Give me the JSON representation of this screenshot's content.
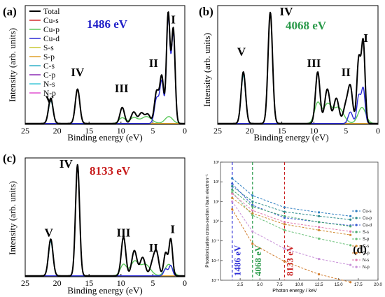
{
  "panels": [
    {
      "panel_label": "(a)",
      "energy_label": "1486 eV",
      "energy_color": "#2020c8",
      "ylabel": "Intensity (arb. units)",
      "xlabel": "Binding energy (eV)",
      "x_ticks": [
        "25",
        "20",
        "15",
        "10",
        "5",
        "0"
      ],
      "peak_labels": [
        {
          "text": "V",
          "x": 21.2,
          "y": 0.18
        },
        {
          "text": "IV",
          "x": 16.8,
          "y": 0.42
        },
        {
          "text": "III",
          "x": 9.9,
          "y": 0.28
        },
        {
          "text": "II",
          "x": 4.9,
          "y": 0.5
        },
        {
          "text": "I",
          "x": 1.8,
          "y": 0.88
        }
      ],
      "legend": [
        {
          "label": "Total",
          "color": "#000000"
        },
        {
          "label": "Cu-s",
          "color": "#d22d2d"
        },
        {
          "label": "Cu-p",
          "color": "#5ac85a"
        },
        {
          "label": "Cu-d",
          "color": "#2a2ad6"
        },
        {
          "label": "S-s",
          "color": "#c8c832"
        },
        {
          "label": "S-p",
          "color": "#e0a02a"
        },
        {
          "label": "C-s",
          "color": "#30b0c8"
        },
        {
          "label": "C-p",
          "color": "#8a2ab4"
        },
        {
          "label": "N-s",
          "color": "#40c8d8"
        },
        {
          "label": "N-p",
          "color": "#e050d0"
        }
      ]
    },
    {
      "panel_label": "(b)",
      "energy_label": "4068 eV",
      "energy_color": "#2a9a4a",
      "ylabel": "Intensity (arb. units)",
      "xlabel": "Binding energy (eV)",
      "x_ticks": [
        "25",
        "20",
        "15",
        "10",
        "5",
        "0"
      ],
      "peak_labels": [
        {
          "text": "V",
          "x": 21.3,
          "y": 0.6
        },
        {
          "text": "IV",
          "x": 14.3,
          "y": 0.95
        },
        {
          "text": "III",
          "x": 10.0,
          "y": 0.5
        },
        {
          "text": "II",
          "x": 5.0,
          "y": 0.42
        },
        {
          "text": "I",
          "x": 1.9,
          "y": 0.72
        }
      ]
    },
    {
      "panel_label": "(c)",
      "energy_label": "8133 eV",
      "energy_color": "#c81e1e",
      "ylabel": "Intensity (arb. units)",
      "xlabel": "Binding energy (eV)",
      "x_ticks": [
        "25",
        "20",
        "15",
        "10",
        "5",
        "0"
      ],
      "peak_labels": [
        {
          "text": "V",
          "x": 21.3,
          "y": 0.35
        },
        {
          "text": "IV",
          "x": 18.6,
          "y": 0.95
        },
        {
          "text": "III",
          "x": 9.6,
          "y": 0.35
        },
        {
          "text": "II",
          "x": 4.9,
          "y": 0.22
        },
        {
          "text": "I",
          "x": 1.9,
          "y": 0.38
        }
      ]
    },
    {
      "panel_label": "(d)",
      "ylabel": "Photoionization cross-section / barn electron⁻¹",
      "xlabel": "Photon energy / keV",
      "x_ticks": [
        "2.5",
        "5.0",
        "7.5",
        "10.0",
        "12.5",
        "15.0",
        "17.5",
        "20.0"
      ],
      "y_ticks": [
        "10⁻³",
        "10⁻²",
        "10⁻¹",
        "10⁰",
        "10¹",
        "10²",
        "10³"
      ],
      "energy_markers": [
        {
          "label": "1486 eV",
          "x": 1.486,
          "color": "#2a2ad6"
        },
        {
          "label": "4068 eV",
          "x": 4.068,
          "color": "#2a9a4a"
        },
        {
          "label": "8133 eV",
          "x": 8.133,
          "color": "#c81e1e"
        }
      ],
      "legend": [
        {
          "label": "Cu-s",
          "color": "#2f7fc1"
        },
        {
          "label": "Cu-p",
          "color": "#2a8a8a"
        },
        {
          "label": "Cu-d",
          "color": "#3a5ad0"
        },
        {
          "label": "S-s",
          "color": "#4aa870"
        },
        {
          "label": "S-p",
          "color": "#68c078"
        },
        {
          "label": "C-s",
          "color": "#d08a30"
        },
        {
          "label": "C-p",
          "color": "#d07a2a"
        },
        {
          "label": "N-s",
          "color": "#e07ab0"
        },
        {
          "label": "N-p",
          "color": "#c890d8"
        }
      ]
    }
  ],
  "chart_data": [
    {
      "type": "line",
      "panel": "(a)",
      "xlabel": "Binding energy (eV)",
      "ylabel": "Intensity (arb. units)",
      "xlim": [
        25,
        0
      ],
      "x_reversed": true,
      "series_peaks": [
        {
          "name": "Total",
          "peaks": [
            [
              21.0,
              0.22,
              0.35
            ],
            [
              16.8,
              0.3,
              0.35
            ],
            [
              9.8,
              0.14,
              0.35
            ],
            [
              8.0,
              0.1,
              0.4
            ],
            [
              6.8,
              0.09,
              0.4
            ],
            [
              5.8,
              0.08,
              0.4
            ],
            [
              4.4,
              0.28,
              0.35
            ],
            [
              3.6,
              0.4,
              0.3
            ],
            [
              2.6,
              0.96,
              0.28
            ],
            [
              1.8,
              0.82,
              0.28
            ]
          ]
        },
        {
          "name": "Cu-d",
          "peaks": [
            [
              4.4,
              0.22,
              0.35
            ],
            [
              3.6,
              0.36,
              0.3
            ],
            [
              2.6,
              0.92,
              0.28
            ],
            [
              1.8,
              0.78,
              0.28
            ]
          ]
        },
        {
          "name": "S-p",
          "peaks": [
            [
              16.8,
              0.29,
              0.35
            ]
          ]
        },
        {
          "name": "N-s",
          "peaks": [
            [
              21.0,
              0.2,
              0.35
            ]
          ]
        },
        {
          "name": "Cu-p",
          "peaks": [
            [
              9.8,
              0.05,
              0.5
            ],
            [
              8.0,
              0.05,
              0.6
            ],
            [
              6.0,
              0.06,
              0.8
            ],
            [
              2.5,
              0.06,
              0.6
            ]
          ]
        }
      ]
    },
    {
      "type": "line",
      "panel": "(b)",
      "xlabel": "Binding energy (eV)",
      "ylabel": "Intensity (arb. units)",
      "xlim": [
        25,
        0
      ],
      "x_reversed": true,
      "series_peaks": [
        {
          "name": "Total",
          "peaks": [
            [
              21.0,
              0.45,
              0.35
            ],
            [
              16.8,
              0.97,
              0.35
            ],
            [
              9.4,
              0.45,
              0.35
            ],
            [
              7.9,
              0.3,
              0.4
            ],
            [
              6.5,
              0.22,
              0.4
            ],
            [
              5.0,
              0.16,
              0.4
            ],
            [
              4.3,
              0.3,
              0.35
            ],
            [
              3.0,
              0.56,
              0.3
            ],
            [
              2.3,
              0.7,
              0.28
            ]
          ]
        },
        {
          "name": "S-p",
          "peaks": [
            [
              16.8,
              0.95,
              0.35
            ]
          ]
        },
        {
          "name": "N-s",
          "peaks": [
            [
              21.0,
              0.42,
              0.35
            ]
          ]
        },
        {
          "name": "Cu-p",
          "peaks": [
            [
              9.4,
              0.18,
              0.5
            ],
            [
              7.9,
              0.16,
              0.6
            ],
            [
              6.2,
              0.14,
              0.8
            ],
            [
              2.5,
              0.14,
              0.6
            ]
          ]
        },
        {
          "name": "Cu-d",
          "peaks": [
            [
              3.0,
              0.24,
              0.3
            ],
            [
              2.3,
              0.3,
              0.28
            ],
            [
              4.3,
              0.1,
              0.35
            ]
          ]
        }
      ]
    },
    {
      "type": "line",
      "panel": "(c)",
      "xlabel": "Binding energy (eV)",
      "ylabel": "Intensity (arb. units)",
      "xlim": [
        25,
        0
      ],
      "x_reversed": true,
      "series_peaks": [
        {
          "name": "Total",
          "peaks": [
            [
              21.0,
              0.32,
              0.35
            ],
            [
              16.8,
              0.97,
              0.32
            ],
            [
              9.6,
              0.34,
              0.35
            ],
            [
              7.9,
              0.22,
              0.4
            ],
            [
              6.6,
              0.16,
              0.4
            ],
            [
              5.0,
              0.12,
              0.4
            ],
            [
              4.4,
              0.18,
              0.35
            ],
            [
              3.0,
              0.2,
              0.3
            ],
            [
              2.2,
              0.32,
              0.28
            ]
          ]
        },
        {
          "name": "S-p",
          "peaks": [
            [
              16.8,
              0.95,
              0.32
            ]
          ]
        },
        {
          "name": "N-s",
          "peaks": [
            [
              21.0,
              0.3,
              0.35
            ]
          ]
        },
        {
          "name": "Cu-p",
          "peaks": [
            [
              9.6,
              0.1,
              0.5
            ],
            [
              7.9,
              0.12,
              0.6
            ],
            [
              6.2,
              0.1,
              0.8
            ],
            [
              2.5,
              0.1,
              0.6
            ]
          ]
        },
        {
          "name": "Cu-d",
          "peaks": [
            [
              3.0,
              0.06,
              0.3
            ],
            [
              2.2,
              0.09,
              0.28
            ]
          ]
        }
      ]
    },
    {
      "type": "line",
      "panel": "(d)",
      "xlabel": "Photon energy / keV",
      "ylabel": "Photoionization cross-section / barn electron⁻¹",
      "xlim": [
        0,
        20
      ],
      "ylim": [
        0.001,
        1000
      ],
      "y_scale": "log",
      "x": [
        1.486,
        4.068,
        8.133,
        12.5,
        16.5
      ],
      "series": [
        {
          "name": "Cu-s",
          "values": [
            150,
            20,
            5.0,
            2.8,
            1.8
          ]
        },
        {
          "name": "Cu-p",
          "values": [
            60,
            10,
            3.0,
            1.8,
            1.2
          ]
        },
        {
          "name": "Cu-d",
          "values": [
            80,
            6.5,
            1.5,
            0.9,
            0.6
          ]
        },
        {
          "name": "S-s",
          "values": [
            40,
            5.5,
            1.8,
            0.9,
            0.55
          ]
        },
        {
          "name": "S-p",
          "values": [
            30,
            2.0,
            0.35,
            0.13,
            0.06
          ]
        },
        {
          "name": "C-s",
          "values": [
            15,
            2.5,
            0.7,
            0.35,
            0.2
          ]
        },
        {
          "name": "C-p",
          "values": [
            4.0,
            0.07,
            0.009,
            0.002,
            0.0008
          ]
        },
        {
          "name": "N-s",
          "values": [
            25,
            3.5,
            0.9,
            0.5,
            0.3
          ]
        },
        {
          "name": "N-p",
          "values": [
            10,
            0.3,
            0.04,
            0.012,
            0.006
          ]
        }
      ]
    }
  ]
}
